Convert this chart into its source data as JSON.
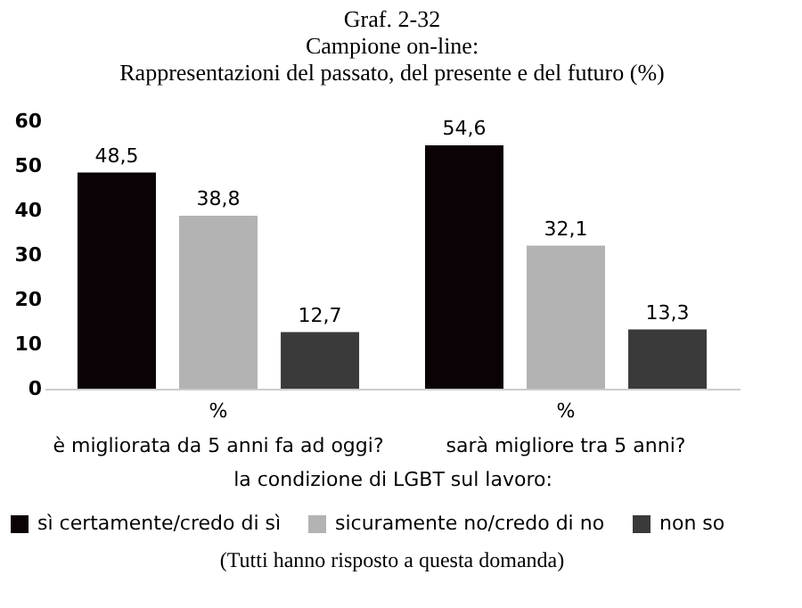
{
  "chart_data": {
    "type": "bar",
    "title": [
      "Graf. 2-32",
      "Campione on-line:",
      "Rappresentazioni del passato, del presente e del futuro (%)"
    ],
    "categories": [
      "è migliorata da 5 anni fa ad oggi?",
      "sarà migliore tra 5 anni?"
    ],
    "xlabel": "la condizione di LGBT sul lavoro:",
    "series": [
      {
        "name": "sì certamente/credo di sì",
        "color": "#0a0204",
        "values": [
          48.5,
          54.6
        ],
        "value_labels": [
          "48,5",
          "54,6"
        ]
      },
      {
        "name": "sicuramente no/credo di no",
        "color": "#b3b3b3",
        "values": [
          38.8,
          32.1
        ],
        "value_labels": [
          "38,8",
          "32,1"
        ]
      },
      {
        "name": "non so",
        "color": "#3a3a3a",
        "values": [
          12.7,
          13.3
        ],
        "value_labels": [
          "12,7",
          "13,3"
        ]
      }
    ],
    "ylim": [
      0,
      60
    ],
    "yticks": [
      0,
      10,
      20,
      30,
      40,
      50,
      60
    ],
    "grid": false,
    "legend": "bottom",
    "annotations": [
      "%",
      "%",
      "(Tutti hanno risposto a questa domanda)"
    ]
  }
}
